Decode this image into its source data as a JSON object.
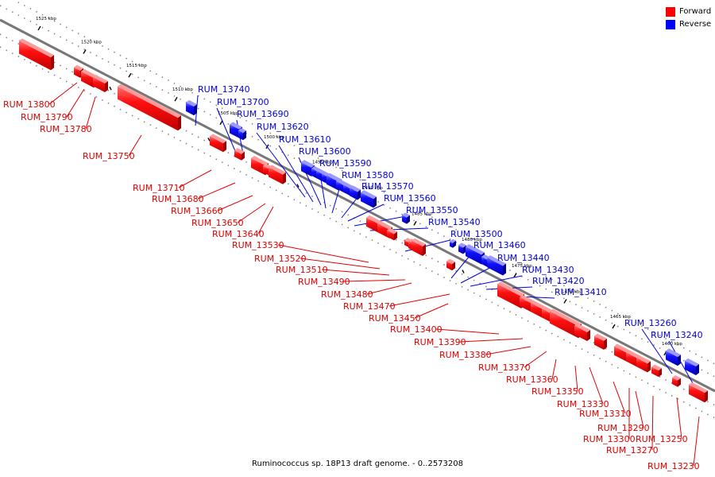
{
  "legend": {
    "forward": {
      "label": "Forward",
      "color": "#ff0000"
    },
    "reverse": {
      "label": "Reverse",
      "color": "#0000ff"
    }
  },
  "caption": "Ruminococcus sp. 18P13 draft genome. - 0..2573208",
  "ticks": [
    "1525 kbp",
    "1520 kbp",
    "1515 kbp",
    "1510 kbp",
    "1505 kbp",
    "1500 kbp",
    "1495 kbp",
    "1490 kbp",
    "1485 kbp",
    "1480 kbp",
    "1475 kbp",
    "1470 kbp",
    "1465 kbp",
    "1460 kbp"
  ],
  "forward_labels": [
    "RUM_13800",
    "RUM_13790",
    "RUM_13780",
    "RUM_13750",
    "RUM_13710",
    "RUM_13680",
    "RUM_13660",
    "RUM_13650",
    "RUM_13640",
    "RUM_13530",
    "RUM_13520",
    "RUM_13510",
    "RUM_13490",
    "RUM_13480",
    "RUM_13470",
    "RUM_13450",
    "RUM_13400",
    "RUM_13390",
    "RUM_13380",
    "RUM_13370",
    "RUM_13360",
    "RUM_13350",
    "RUM_13330",
    "RUM_13310",
    "RUM_13290",
    "RUM_13300",
    "RUM_13250",
    "RUM_13270",
    "RUM_13230"
  ],
  "reverse_labels": [
    "RUM_13740",
    "RUM_13700",
    "RUM_13690",
    "RUM_13620",
    "RUM_13610",
    "RUM_13600",
    "RUM_13590",
    "RUM_13580",
    "RUM_13570",
    "RUM_13560",
    "RUM_13550",
    "RUM_13540",
    "RUM_13500",
    "RUM_13460",
    "RUM_13440",
    "RUM_13430",
    "RUM_13420",
    "RUM_13410",
    "RUM_13260",
    "RUM_13240"
  ]
}
